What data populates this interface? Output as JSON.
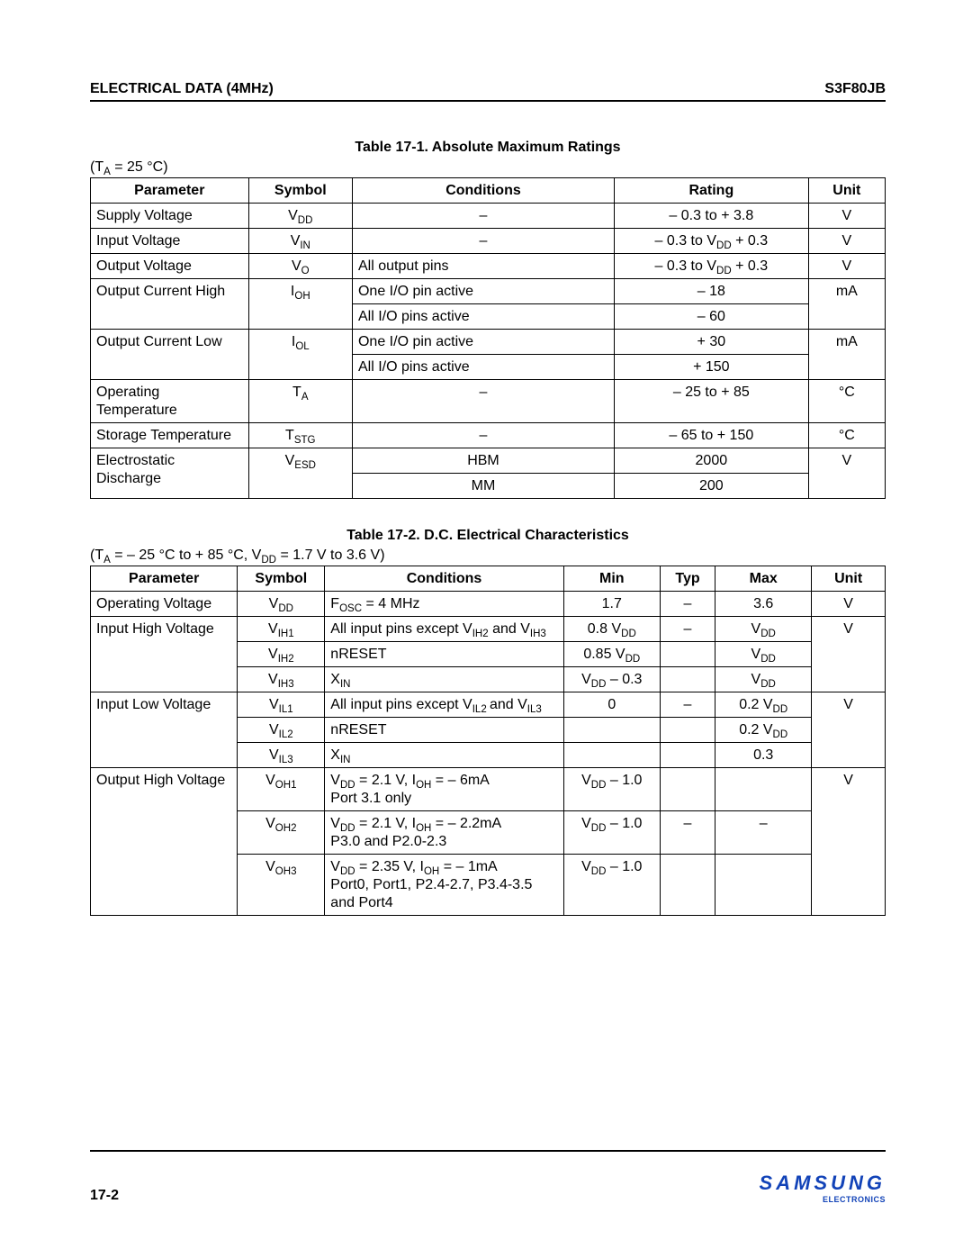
{
  "header": {
    "left": "ELECTRICAL DATA (4MHz)",
    "right": "S3F80JB"
  },
  "footer": {
    "page": "17-2",
    "logo": "SAMSUNG",
    "logo_sub": "ELECTRONICS"
  },
  "t1": {
    "title": "Table 17-1. Absolute Maximum Ratings",
    "note_html": "(T<sub>A</sub> = 25 °C)",
    "columns": [
      "Parameter",
      "Symbol",
      "Conditions",
      "Rating",
      "Unit"
    ],
    "rows": [
      {
        "param": "Supply Voltage",
        "sym_html": "V<sub>DD</sub>",
        "cond_html": "–",
        "cond_align": "c",
        "rating_html": "– 0.3 to + 3.8",
        "unit": "V"
      },
      {
        "param": "Input Voltage",
        "sym_html": "V<sub>IN</sub>",
        "cond_html": "–",
        "cond_align": "c",
        "rating_html": "– 0.3 to V<sub>DD</sub> + 0.3",
        "unit": "V"
      },
      {
        "param": "Output Voltage",
        "sym_html": "V<sub>O</sub>",
        "cond_html": "All output pins",
        "cond_align": "l",
        "rating_html": "– 0.3 to V<sub>DD</sub> + 0.3",
        "unit": "V"
      },
      {
        "param": "Output Current High",
        "param_rowspan": 2,
        "sym_html": "I<sub>OH</sub>",
        "sym_rowspan": 2,
        "cond_html": "One I/O pin active",
        "cond_align": "l",
        "rating_html": "– 18",
        "unit": "mA",
        "unit_rowspan": 2
      },
      {
        "cond_html": "All I/O pins active",
        "cond_align": "l",
        "rating_html": "– 60"
      },
      {
        "param": "Output Current Low",
        "param_rowspan": 2,
        "sym_html": "I<sub>OL</sub>",
        "sym_rowspan": 2,
        "cond_html": "One I/O pin active",
        "cond_align": "l",
        "rating_html": "+ 30",
        "unit": "mA",
        "unit_rowspan": 2
      },
      {
        "cond_html": "All I/O pins active",
        "cond_align": "l",
        "rating_html": "+ 150"
      },
      {
        "param": "Operating Temperature",
        "sym_html": "T<sub>A</sub>",
        "cond_html": "–",
        "cond_align": "c",
        "rating_html": "– 25 to + 85",
        "unit": "°C"
      },
      {
        "param": "Storage Temperature",
        "sym_html": "T<sub>STG</sub>",
        "cond_html": "–",
        "cond_align": "c",
        "rating_html": "– 65 to + 150",
        "unit": "°C"
      },
      {
        "param": "Electrostatic Discharge",
        "param_rowspan": 2,
        "sym_html": "V<sub>ESD</sub>",
        "sym_rowspan": 2,
        "cond_html": "HBM",
        "cond_align": "c",
        "rating_html": "2000",
        "unit": "V",
        "unit_rowspan": 2
      },
      {
        "cond_html": "MM",
        "cond_align": "c",
        "rating_html": "200"
      }
    ]
  },
  "t2": {
    "title": "Table 17-2. D.C. Electrical Characteristics",
    "note_html": "(T<sub>A</sub>  =  – 25 °C to  + 85 °C, V<sub>DD</sub>  = 1.7 V to 3.6 V)",
    "columns": [
      "Parameter",
      "Symbol",
      "Conditions",
      "Min",
      "Typ",
      "Max",
      "Unit"
    ],
    "rows": [
      {
        "param": "Operating Voltage",
        "sym_html": "V<sub>DD</sub>",
        "cond_html": "F<sub>OSC</sub> = 4 MHz",
        "min_html": "1.7",
        "typ_html": "–",
        "max_html": "3.6",
        "unit": "V"
      },
      {
        "param": "Input High Voltage",
        "param_rowspan": 3,
        "sym_html": "V<sub>IH1</sub>",
        "cond_html": "All input pins except V<sub>IH2</sub> and V<sub>IH3</sub>",
        "min_html": "0.8 V<sub>DD</sub>",
        "typ_html": "–",
        "max_html": "V<sub>DD</sub>",
        "unit": "V",
        "unit_rowspan": 3
      },
      {
        "sym_html": "V<sub>IH2</sub>",
        "cond_html": "nRESET",
        "min_html": "0.85 V<sub>DD</sub>",
        "typ_html": "",
        "max_html": "V<sub>DD</sub>"
      },
      {
        "sym_html": "V<sub>IH3</sub>",
        "cond_html": "X<sub>IN</sub>",
        "min_html": "V<sub>DD</sub> – 0.3",
        "typ_html": "",
        "max_html": "V<sub>DD</sub>"
      },
      {
        "param": "Input Low Voltage",
        "param_rowspan": 3,
        "sym_html": "V<sub>IL1</sub>",
        "cond_html": "All input pins except V<sub>IL2 </sub> and V<sub>IL3</sub>",
        "min_html": "0",
        "typ_html": "–",
        "max_html": "0.2 V<sub>DD</sub>",
        "unit": "V",
        "unit_rowspan": 3
      },
      {
        "sym_html": "V<sub>IL2</sub>",
        "cond_html": "nRESET",
        "min_html": "",
        "typ_html": "",
        "max_html": "0.2 V<sub>DD</sub>"
      },
      {
        "sym_html": "V<sub>IL3</sub>",
        "cond_html": "X<sub>IN</sub>",
        "min_html": "",
        "typ_html": "",
        "max_html": "0.3"
      },
      {
        "param": "Output High Voltage",
        "param_rowspan": 3,
        "sym_html": "V<sub>OH1</sub>",
        "cond_html": "V<sub>DD</sub> = 2.1 V, I<sub>OH</sub> = – 6mA<br>Port 3.1 only",
        "min_html": "V<sub>DD</sub> – 1.0",
        "typ_html": "",
        "max_html": "",
        "unit": "V",
        "unit_rowspan": 3
      },
      {
        "sym_html": "V<sub>OH2</sub>",
        "cond_html": "V<sub>DD</sub> = 2.1 V, I<sub>OH</sub> = – 2.2mA<br>P3.0 and P2.0-2.3",
        "min_html": "V<sub>DD</sub> – 1.0",
        "typ_html": "–",
        "max_html": "–"
      },
      {
        "sym_html": "V<sub>OH3</sub>",
        "cond_html": "V<sub>DD</sub> = 2.35 V, I<sub>OH</sub> = – 1mA<br>Port0, Port1, P2.4-2.7, P3.4-3.5 and Port4",
        "min_html": "V<sub>DD</sub> – 1.0",
        "typ_html": "",
        "max_html": ""
      }
    ]
  }
}
